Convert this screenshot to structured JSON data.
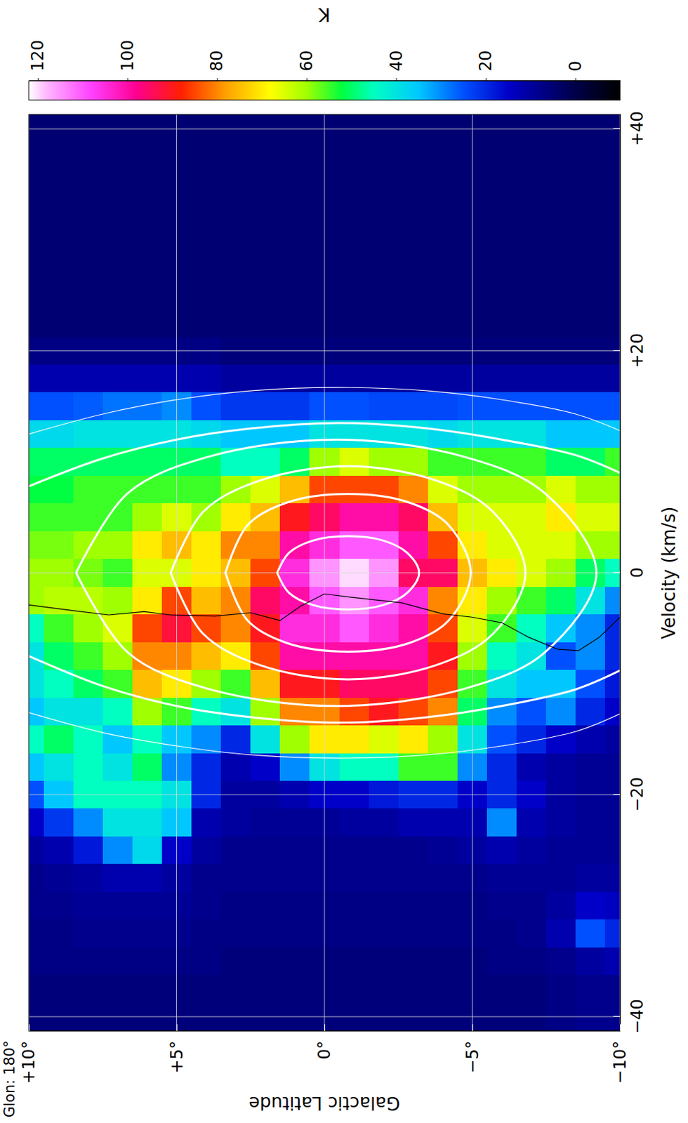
{
  "chart_data": {
    "type": "heatmap",
    "annotation": "Glon: 180°",
    "xlabel": "Velocity (km/s)",
    "ylabel": "Galactic Latitude",
    "xlim": [
      -41.3,
      41.3
    ],
    "xticks": [
      {
        "value": -40,
        "label": "−40"
      },
      {
        "value": -20,
        "label": "−20"
      },
      0,
      {
        "value": 20,
        "label": "+20"
      },
      {
        "value": 40,
        "label": "+40"
      }
    ],
    "ylim": [
      -10,
      10
    ],
    "yticks": [
      {
        "value": 10,
        "label": "+10°"
      },
      {
        "value": 5,
        "label": "+5°"
      },
      {
        "value": 0,
        "label": "0°"
      },
      {
        "value": -5,
        "label": "−5°"
      },
      {
        "value": -10,
        "label": "−10°"
      }
    ],
    "grid": true,
    "colorbar": {
      "label": "K",
      "range": [
        -10,
        122
      ],
      "ticks": [
        0,
        20,
        40,
        60,
        80,
        100,
        120
      ]
    },
    "x": [
      -40,
      -37.5,
      -35,
      -32.5,
      -30,
      -27.5,
      -25,
      -22.5,
      -20,
      -17.5,
      -15,
      -12.5,
      -10,
      -7.5,
      -5,
      -2.5,
      0,
      2.5,
      5,
      7.5,
      10,
      12.5,
      15,
      17.5,
      20,
      22.5,
      25,
      27.5,
      30,
      32.5,
      35,
      37.5,
      40
    ],
    "y": [
      10,
      9,
      8,
      7,
      6,
      5,
      4,
      3,
      2,
      1,
      0,
      -1,
      -2,
      -3,
      -4,
      -5,
      -6,
      -7,
      -8,
      -9,
      -10
    ],
    "z": [
      [
        6,
        6,
        7,
        7,
        8,
        8,
        10,
        15,
        25,
        35,
        45,
        35,
        40,
        40,
        45,
        60,
        60,
        58,
        55,
        52,
        50,
        38,
        25,
        12,
        7,
        5,
        5,
        5,
        5,
        5,
        5,
        5,
        5
      ],
      [
        6,
        6,
        7,
        7,
        8,
        9,
        12,
        22,
        35,
        40,
        50,
        40,
        45,
        50,
        55,
        62,
        60,
        58,
        55,
        52,
        50,
        38,
        25,
        12,
        7,
        5,
        5,
        5,
        5,
        5,
        5,
        5,
        5
      ],
      [
        6,
        6,
        7,
        8,
        9,
        10,
        18,
        30,
        45,
        45,
        45,
        40,
        50,
        55,
        60,
        62,
        58,
        60,
        55,
        55,
        50,
        40,
        26,
        12,
        7,
        5,
        5,
        5,
        5,
        5,
        5,
        5,
        5
      ],
      [
        6,
        6,
        7,
        8,
        9,
        12,
        30,
        40,
        45,
        40,
        35,
        45,
        55,
        60,
        65,
        60,
        55,
        60,
        55,
        55,
        50,
        40,
        28,
        12,
        7,
        5,
        5,
        5,
        5,
        5,
        5,
        5,
        5
      ],
      [
        6,
        6,
        7,
        8,
        9,
        12,
        38,
        40,
        45,
        50,
        45,
        60,
        75,
        80,
        85,
        70,
        65,
        70,
        60,
        55,
        50,
        40,
        28,
        12,
        7,
        5,
        5,
        5,
        5,
        5,
        5,
        5,
        5
      ],
      [
        6,
        6,
        7,
        8,
        9,
        10,
        15,
        35,
        40,
        30,
        35,
        55,
        70,
        80,
        92,
        85,
        65,
        75,
        65,
        55,
        50,
        40,
        30,
        12,
        7,
        5,
        5,
        5,
        5,
        5,
        5,
        5,
        5
      ],
      [
        6,
        6,
        7,
        7,
        8,
        8,
        10,
        12,
        20,
        20,
        30,
        45,
        60,
        75,
        85,
        75,
        70,
        70,
        60,
        55,
        50,
        38,
        25,
        12,
        7,
        5,
        5,
        5,
        5,
        5,
        5,
        5,
        5
      ],
      [
        6,
        6,
        6,
        7,
        7,
        8,
        8,
        10,
        10,
        12,
        20,
        40,
        55,
        70,
        80,
        80,
        75,
        80,
        70,
        60,
        45,
        35,
        22,
        10,
        6,
        5,
        5,
        5,
        5,
        5,
        5,
        5,
        5
      ],
      [
        6,
        6,
        6,
        7,
        7,
        8,
        8,
        9,
        10,
        15,
        40,
        60,
        75,
        85,
        90,
        95,
        85,
        80,
        75,
        65,
        45,
        35,
        22,
        10,
        6,
        5,
        5,
        5,
        5,
        5,
        5,
        5,
        5
      ],
      [
        6,
        6,
        6,
        7,
        7,
        8,
        8,
        9,
        12,
        30,
        60,
        80,
        90,
        100,
        105,
        100,
        105,
        100,
        90,
        75,
        50,
        35,
        22,
        10,
        6,
        5,
        5,
        5,
        5,
        5,
        5,
        5,
        5
      ],
      [
        6,
        6,
        6,
        7,
        7,
        8,
        8,
        9,
        15,
        40,
        70,
        80,
        90,
        100,
        105,
        110,
        115,
        105,
        95,
        85,
        60,
        40,
        25,
        10,
        6,
        5,
        5,
        5,
        5,
        5,
        5,
        5,
        5
      ],
      [
        6,
        6,
        6,
        7,
        7,
        8,
        8,
        10,
        15,
        45,
        70,
        85,
        95,
        100,
        110,
        115,
        120,
        110,
        100,
        85,
        65,
        40,
        25,
        10,
        6,
        5,
        5,
        5,
        5,
        5,
        5,
        5,
        5
      ],
      [
        6,
        6,
        6,
        7,
        7,
        8,
        8,
        10,
        18,
        45,
        65,
        90,
        95,
        100,
        105,
        110,
        115,
        110,
        100,
        85,
        60,
        40,
        24,
        10,
        6,
        5,
        5,
        5,
        5,
        5,
        5,
        5,
        5
      ],
      [
        6,
        6,
        6,
        7,
        7,
        8,
        8,
        12,
        20,
        55,
        70,
        85,
        95,
        100,
        100,
        105,
        95,
        100,
        95,
        80,
        60,
        40,
        24,
        10,
        6,
        5,
        5,
        5,
        5,
        5,
        5,
        5,
        5
      ],
      [
        6,
        6,
        6,
        7,
        7,
        8,
        9,
        12,
        20,
        55,
        60,
        80,
        85,
        90,
        85,
        80,
        95,
        85,
        75,
        65,
        55,
        38,
        24,
        10,
        6,
        5,
        5,
        5,
        5,
        5,
        5,
        5,
        5
      ],
      [
        6,
        6,
        6,
        7,
        7,
        8,
        10,
        12,
        15,
        30,
        40,
        50,
        55,
        60,
        65,
        70,
        75,
        70,
        65,
        60,
        55,
        40,
        25,
        10,
        6,
        5,
        5,
        5,
        5,
        5,
        5,
        5,
        5
      ],
      [
        6,
        6,
        7,
        7,
        8,
        9,
        12,
        30,
        20,
        20,
        25,
        30,
        40,
        45,
        55,
        60,
        70,
        65,
        65,
        60,
        55,
        40,
        25,
        10,
        6,
        5,
        5,
        5,
        5,
        5,
        5,
        5,
        5
      ],
      [
        6,
        6,
        7,
        8,
        8,
        9,
        10,
        12,
        15,
        12,
        20,
        25,
        35,
        40,
        45,
        55,
        65,
        65,
        65,
        60,
        55,
        40,
        25,
        10,
        6,
        5,
        5,
        5,
        5,
        5,
        5,
        5,
        5
      ],
      [
        7,
        7,
        8,
        12,
        10,
        9,
        9,
        10,
        10,
        10,
        15,
        30,
        35,
        25,
        35,
        50,
        60,
        65,
        70,
        65,
        50,
        35,
        25,
        10,
        6,
        5,
        5,
        5,
        5,
        5,
        5,
        5,
        5
      ],
      [
        8,
        8,
        10,
        25,
        15,
        10,
        9,
        9,
        9,
        9,
        12,
        20,
        25,
        30,
        30,
        40,
        50,
        60,
        65,
        60,
        50,
        35,
        25,
        10,
        6,
        5,
        5,
        5,
        5,
        5,
        5,
        5,
        5
      ],
      [
        8,
        8,
        12,
        20,
        14,
        10,
        9,
        9,
        9,
        9,
        10,
        15,
        18,
        20,
        20,
        30,
        45,
        60,
        65,
        60,
        55,
        35,
        25,
        10,
        6,
        5,
        5,
        5,
        5,
        5,
        5,
        5,
        5
      ]
    ],
    "series": [
      {
        "type": "contour",
        "color": "#ffffff",
        "line_style": "solid",
        "x": [
          0,
          1.8,
          2.9,
          3.3,
          2.9,
          1.8,
          0,
          -1.8,
          -2.9,
          -3.3,
          -2.9,
          -1.8,
          0
        ],
        "y": [
          1.6,
          1.2,
          0.4,
          -0.8,
          -2.0,
          -2.8,
          -3.2,
          -2.8,
          -2.0,
          -0.8,
          0.4,
          1.2,
          1.6
        ]
      },
      {
        "type": "contour",
        "color": "#ffffff",
        "line_style": "solid",
        "x": [
          0,
          4.3,
          6.3,
          7.1,
          6.3,
          4.3,
          0,
          -4.3,
          -6.3,
          -7.1,
          -6.3,
          -4.3,
          0
        ],
        "y": [
          3.35,
          2.6,
          1.3,
          -0.8,
          -2.9,
          -4.2,
          -4.95,
          -4.2,
          -2.9,
          -0.8,
          1.3,
          2.6,
          3.35
        ]
      },
      {
        "type": "contour",
        "color": "#ffffff",
        "line_style": "solid",
        "x": [
          0,
          5.5,
          8.3,
          9.6,
          8.3,
          5.5,
          0,
          -5.5,
          -8.3,
          -9.6,
          -8.3,
          -5.5,
          0
        ],
        "y": [
          5.2,
          4.1,
          2.2,
          -0.8,
          -3.8,
          -5.7,
          -6.8,
          -5.7,
          -3.8,
          -0.8,
          2.2,
          4.1,
          5.2
        ]
      },
      {
        "type": "contour",
        "color": "#ffffff",
        "line_style": "solid",
        "x": [
          0,
          7.2,
          10.4,
          12.0,
          10.4,
          7.2,
          0,
          -7.2,
          -10.4,
          -12.0,
          -10.4,
          -7.2,
          0
        ],
        "y": [
          8.4,
          6.64,
          4.0,
          -0.4,
          -4.8,
          -7.44,
          -9.2,
          -7.44,
          -4.8,
          -0.4,
          4.0,
          6.64,
          8.4
        ]
      },
      {
        "type": "contour",
        "color": "#ffffff",
        "line_style": "solid",
        "x": [
          7.8,
          10.3,
          12.0,
          13.0,
          13.5,
          13.0,
          12.0,
          10.6,
          9.0
        ],
        "y": [
          10,
          7.5,
          5,
          2.5,
          -0.5,
          -3.5,
          -6,
          -8.5,
          -10
        ]
      },
      {
        "type": "contour",
        "color": "#ffffff",
        "line_style": "solid",
        "x": [
          -7.5,
          -10.2,
          -12.0,
          -13.0,
          -13.5,
          -13.0,
          -12.0,
          -10.5,
          -8.8
        ],
        "y": [
          10,
          7.5,
          5,
          2.5,
          -0.5,
          -3.5,
          -6,
          -8.5,
          -10
        ]
      },
      {
        "type": "contour",
        "color": "#ffffff",
        "line_style": "thin",
        "x": [
          12.5,
          14.3,
          15.6,
          16.4,
          16.7,
          16.4,
          15.6,
          14.3,
          12.8
        ],
        "y": [
          10,
          7.5,
          5,
          2.5,
          -0.5,
          -3.5,
          -6,
          -8.5,
          -10
        ]
      },
      {
        "type": "contour",
        "color": "#ffffff",
        "line_style": "thin",
        "x": [
          -12.6,
          -14.4,
          -15.6,
          -16.4,
          -16.7,
          -16.4,
          -15.6,
          -14.3,
          -12.7
        ],
        "y": [
          10,
          7.5,
          5,
          2.5,
          -0.5,
          -3.5,
          -6,
          -8.5,
          -10
        ]
      },
      {
        "type": "line",
        "color": "#000000",
        "line_style": "thin",
        "x": [
          -2.9,
          -3.4,
          -3.8,
          -3.5,
          -3.8,
          -3.9,
          -3.6,
          -4.3,
          -3.0,
          -1.9,
          -2.2,
          -2.5,
          -2.7,
          -3.7,
          -4.0,
          -4.5,
          -5.8,
          -6.9,
          -7.0,
          -5.8,
          -4.0
        ],
        "y": [
          10,
          8.5,
          7.3,
          6.1,
          5.2,
          3.7,
          2.5,
          1.5,
          0.8,
          0,
          -0.9,
          -1.9,
          -2.6,
          -4.0,
          -5.0,
          -6.0,
          -6.9,
          -7.9,
          -8.6,
          -9.3,
          -10
        ]
      }
    ]
  }
}
